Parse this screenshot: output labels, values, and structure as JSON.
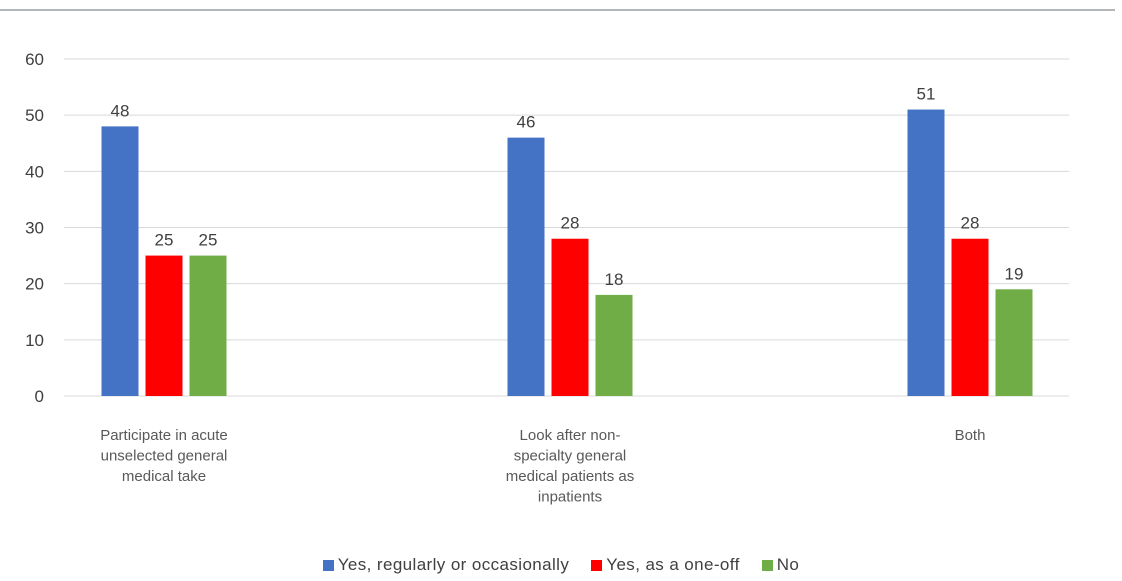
{
  "chart_data": {
    "type": "bar",
    "title": "",
    "xlabel": "",
    "ylabel": "",
    "ylim": [
      0,
      60
    ],
    "yticks": [
      0,
      10,
      20,
      30,
      40,
      50,
      60
    ],
    "grid": true,
    "legend_position": "bottom",
    "categories": [
      [
        "Participate in acute",
        "unselected general",
        "medical take"
      ],
      [
        "Look after non-",
        "specialty general",
        "medical patients as",
        "inpatients"
      ],
      [
        "Both"
      ]
    ],
    "series": [
      {
        "name": "Yes, regularly or occasionally",
        "color": "#4472c4",
        "values": [
          48,
          46,
          51
        ]
      },
      {
        "name": "Yes, as a one-off",
        "color": "#ff0000",
        "values": [
          25,
          28,
          28
        ]
      },
      {
        "name": "No",
        "color": "#70ad47",
        "values": [
          25,
          18,
          19
        ]
      }
    ]
  },
  "colors": {
    "gridline": "#d9d9d9",
    "top_rule": "#b3b6b9"
  }
}
